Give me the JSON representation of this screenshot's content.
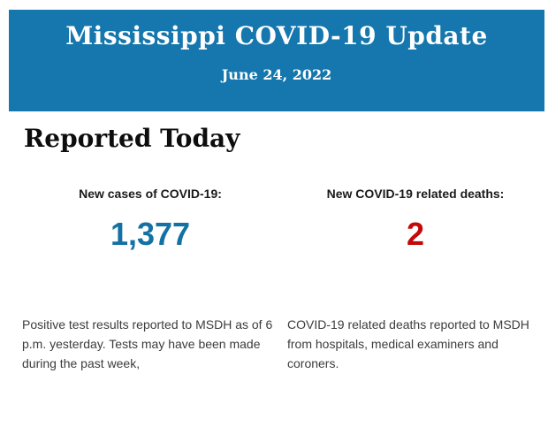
{
  "colors": {
    "header_bg": "#1577ad",
    "header_text": "#ffffff",
    "heading_text": "#0d0d0d",
    "label_text": "#1a1a1a",
    "body_text": "#3c3c3c",
    "cases_value": "#1371a4",
    "deaths_value": "#c20a0a"
  },
  "header": {
    "title": "Mississippi COVID-19 Update",
    "date": "June 24, 2022"
  },
  "main": {
    "heading": "Reported Today",
    "stats": [
      {
        "label": "New cases of COVID-19:",
        "value": "1,377",
        "description": "Positive test results reported to MSDH as of 6 p.m. yesterday. Tests may have been made during the past week,"
      },
      {
        "label": "New COVID-19 related deaths:",
        "value": "2",
        "description": "COVID-19 related deaths reported to MSDH from hospitals, medical examiners and coroners."
      }
    ]
  }
}
